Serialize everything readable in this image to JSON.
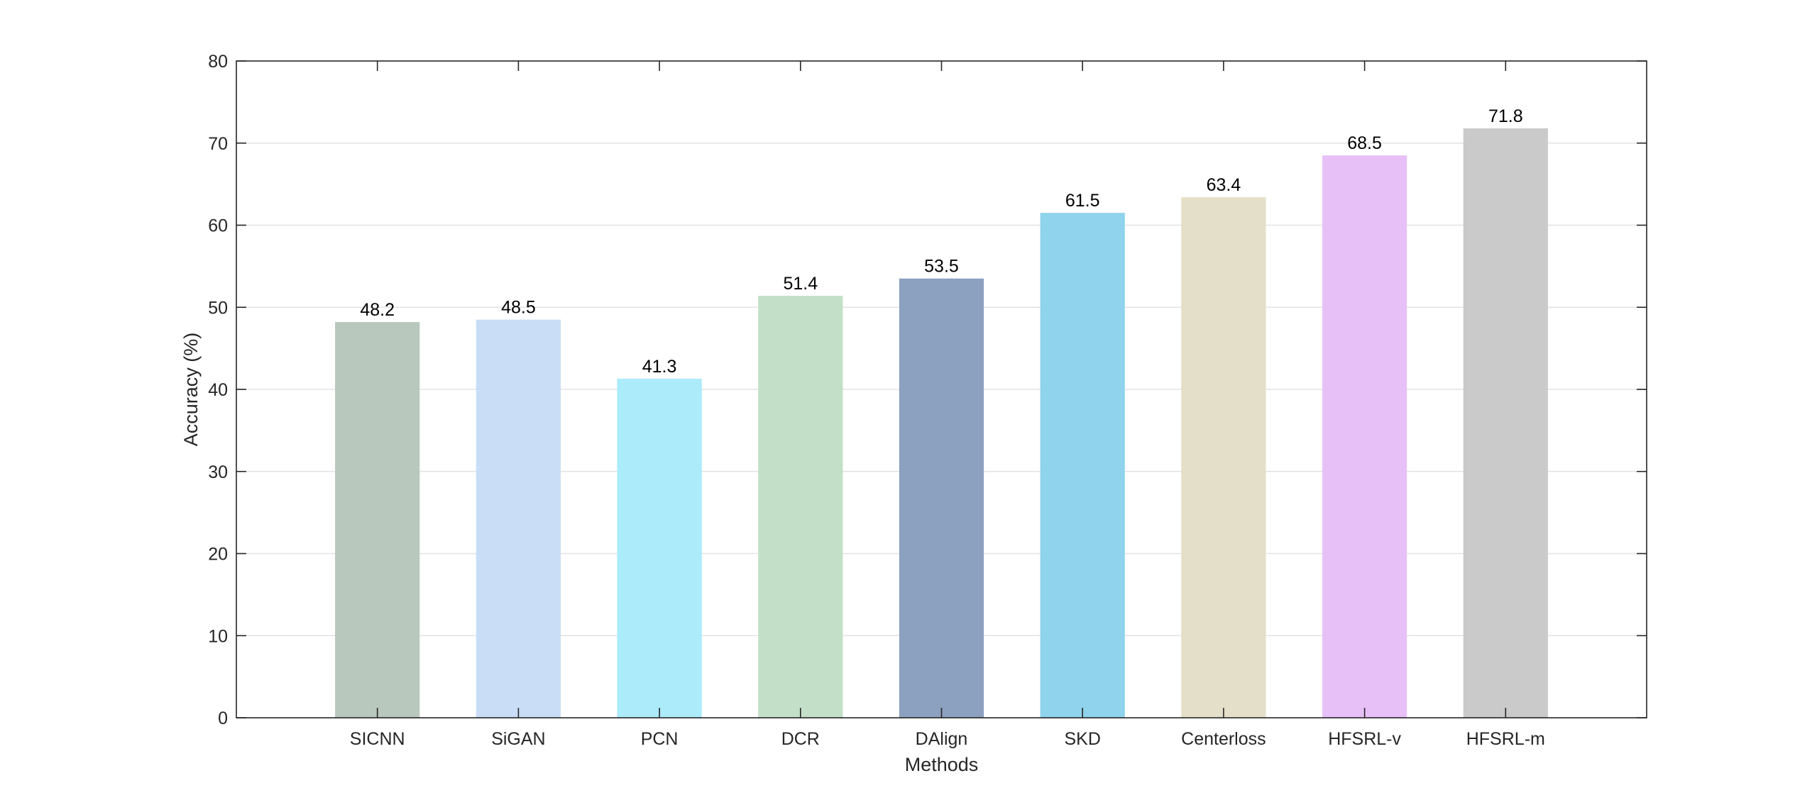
{
  "chart_data": {
    "type": "bar",
    "title": "",
    "xlabel": "Methods",
    "ylabel": "Accuracy (%)",
    "categories": [
      "SICNN",
      "SiGAN",
      "PCN",
      "DCR",
      "DAlign",
      "SKD",
      "Centerloss",
      "HFSRL-v",
      "HFSRL-m"
    ],
    "values": [
      48.2,
      48.5,
      41.3,
      51.4,
      53.5,
      61.5,
      63.4,
      68.5,
      71.8
    ],
    "value_labels": [
      "48.2",
      "48.5",
      "41.3",
      "51.4",
      "53.5",
      "61.5",
      "63.4",
      "68.5",
      "71.8"
    ],
    "colors": [
      "#b9c8bc",
      "#c9ddf6",
      "#abebfa",
      "#c3dfc8",
      "#8ca0bf",
      "#8fd3ec",
      "#e3dfc8",
      "#e8c0f8",
      "#cacaca"
    ],
    "ylim": [
      0,
      80
    ],
    "yticks": [
      0,
      10,
      20,
      30,
      40,
      50,
      60,
      70,
      80
    ],
    "ytick_labels": [
      "0",
      "10",
      "20",
      "30",
      "40",
      "50",
      "60",
      "70",
      "80"
    ],
    "grid": "horizontal",
    "legend": "none",
    "box": true
  }
}
